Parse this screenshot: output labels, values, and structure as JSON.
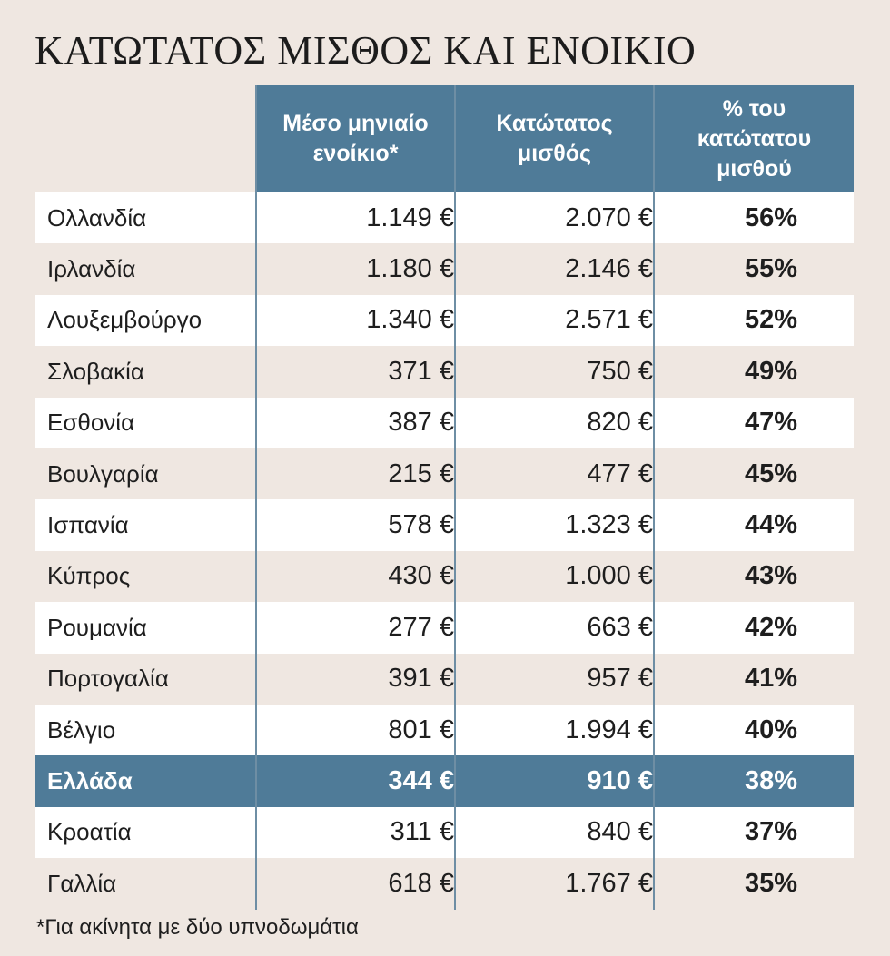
{
  "title": "ΚΑΤΩΤΑΤΟΣ ΜΙΣΘΟΣ ΚΑΙ ΕΝΟΙΚΙΟ",
  "footnote": "*Για ακίνητα με δύο υπνοδωμάτια",
  "chart_data": {
    "type": "table",
    "title": "ΚΑΤΩΤΑΤΟΣ ΜΙΣΘΟΣ ΚΑΙ ΕΝΟΙΚΙΟ",
    "columns": [
      "",
      "Μέσο μηνιαίο\nενοίκιο*",
      "Κατώτατος\nμισθός",
      "% του\nκατώτατου\nμισθού"
    ],
    "highlight_row": "Ελλάδα",
    "highlight_color": "#4f7b98",
    "header_color": "#4f7b98",
    "rows": [
      {
        "country": "Ολλανδία",
        "rent": "1.149 €",
        "wage": "2.070 €",
        "pct": "56%"
      },
      {
        "country": "Ιρλανδία",
        "rent": "1.180 €",
        "wage": "2.146 €",
        "pct": "55%"
      },
      {
        "country": "Λουξεμβούργο",
        "rent": "1.340 €",
        "wage": "2.571 €",
        "pct": "52%"
      },
      {
        "country": "Σλοβακία",
        "rent": "371 €",
        "wage": "750 €",
        "pct": "49%"
      },
      {
        "country": "Εσθονία",
        "rent": "387 €",
        "wage": "820 €",
        "pct": "47%"
      },
      {
        "country": "Βουλγαρία",
        "rent": "215 €",
        "wage": "477 €",
        "pct": "45%"
      },
      {
        "country": "Ισπανία",
        "rent": "578 €",
        "wage": "1.323 €",
        "pct": "44%"
      },
      {
        "country": "Κύπρος",
        "rent": "430 €",
        "wage": "1.000 €",
        "pct": "43%"
      },
      {
        "country": "Ρουμανία",
        "rent": "277 €",
        "wage": "663 €",
        "pct": "42%"
      },
      {
        "country": "Πορτογαλία",
        "rent": "391 €",
        "wage": "957 €",
        "pct": "41%"
      },
      {
        "country": "Βέλγιο",
        "rent": "801 €",
        "wage": "1.994 €",
        "pct": "40%"
      },
      {
        "country": "Ελλάδα",
        "rent": "344 €",
        "wage": "910 €",
        "pct": "38%"
      },
      {
        "country": "Κροατία",
        "rent": "311 €",
        "wage": "840 €",
        "pct": "37%"
      },
      {
        "country": "Γαλλία",
        "rent": "618 €",
        "wage": "1.767 €",
        "pct": "35%"
      }
    ]
  }
}
